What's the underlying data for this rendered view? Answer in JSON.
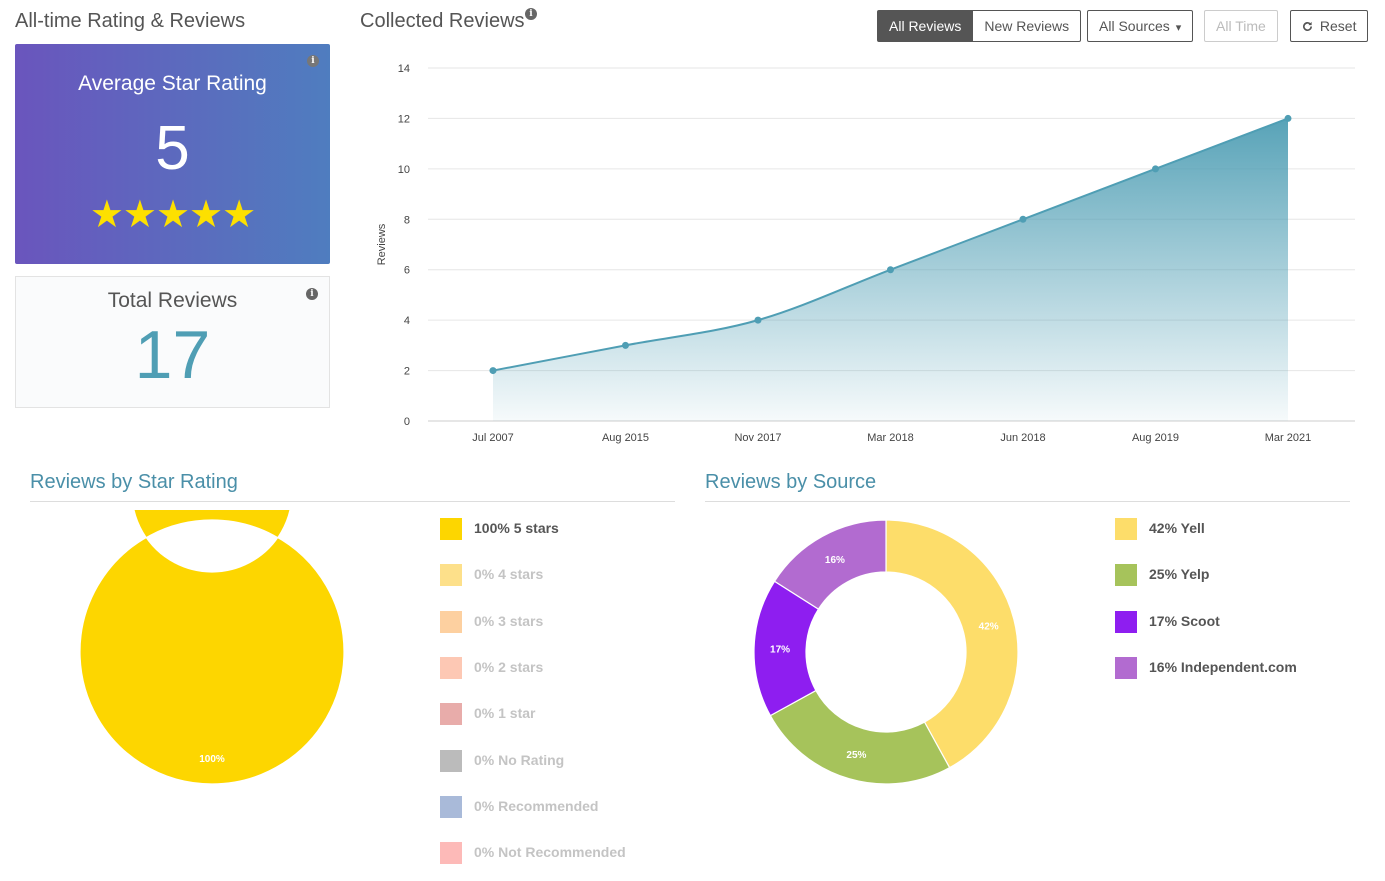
{
  "rating_section": {
    "title": "All-time Rating & Reviews",
    "average_label": "Average Star Rating",
    "average_value": "5",
    "stars": "★★★★★",
    "total_label": "Total Reviews",
    "total_value": "17",
    "info_glyph": "i"
  },
  "collected": {
    "title": "Collected Reviews",
    "info_glyph": "i"
  },
  "toolbar": {
    "all_reviews": "All Reviews",
    "new_reviews": "New Reviews",
    "sources": "All Sources",
    "time": "All Time",
    "reset": "Reset",
    "reset_icon": "refresh-icon",
    "sources_caret": "▾"
  },
  "chart_data": [
    {
      "type": "area",
      "ylabel": "Reviews",
      "ylim": [
        0,
        14
      ],
      "yticks": [
        0,
        2,
        4,
        6,
        8,
        10,
        12,
        14
      ],
      "categories": [
        "Jul 2007",
        "Aug 2015",
        "Nov 2017",
        "Mar 2018",
        "Jun 2018",
        "Aug 2019",
        "Mar 2021"
      ],
      "values": [
        2,
        3,
        4,
        6,
        8,
        10,
        12
      ],
      "color": "#4f9eb4",
      "grid": true
    },
    {
      "type": "pie",
      "title": "Reviews by Star Rating",
      "slices": [
        {
          "label": "5 stars",
          "percent": 100,
          "color": "#fdd600"
        },
        {
          "label": "4 stars",
          "percent": 0,
          "color": "#fde08a"
        },
        {
          "label": "3 stars",
          "percent": 0,
          "color": "#fdd0a0"
        },
        {
          "label": "2 stars",
          "percent": 0,
          "color": "#fdc8b4"
        },
        {
          "label": "1 star",
          "percent": 0,
          "color": "#e8acaa"
        },
        {
          "label": "No Rating",
          "percent": 0,
          "color": "#bbbbbb"
        },
        {
          "label": "Recommended",
          "percent": 0,
          "color": "#a9bad9"
        },
        {
          "label": "Not Recommended",
          "percent": 0,
          "color": "#fdbab8"
        }
      ]
    },
    {
      "type": "pie",
      "title": "Reviews by Source",
      "slices": [
        {
          "label": "Yell",
          "percent": 42,
          "color": "#fddd6a"
        },
        {
          "label": "Yelp",
          "percent": 25,
          "color": "#a6c35b"
        },
        {
          "label": "Scoot",
          "percent": 17,
          "color": "#8e1ef0"
        },
        {
          "label": "Independent.com",
          "percent": 16,
          "color": "#b26bd0"
        }
      ]
    }
  ],
  "star_legend": [
    {
      "text": "100% 5 stars",
      "active": true
    },
    {
      "text": "0% 4 stars",
      "active": false
    },
    {
      "text": "0% 3 stars",
      "active": false
    },
    {
      "text": "0% 2 stars",
      "active": false
    },
    {
      "text": "0% 1 star",
      "active": false
    },
    {
      "text": "0% No Rating",
      "active": false
    },
    {
      "text": "0% Recommended",
      "active": false
    },
    {
      "text": "0% Not Recommended",
      "active": false
    }
  ],
  "source_legend": [
    {
      "text": "42% Yell",
      "active": true
    },
    {
      "text": "25% Yelp",
      "active": true
    },
    {
      "text": "17% Scoot",
      "active": true
    },
    {
      "text": "16% Independent.com",
      "active": true
    }
  ]
}
